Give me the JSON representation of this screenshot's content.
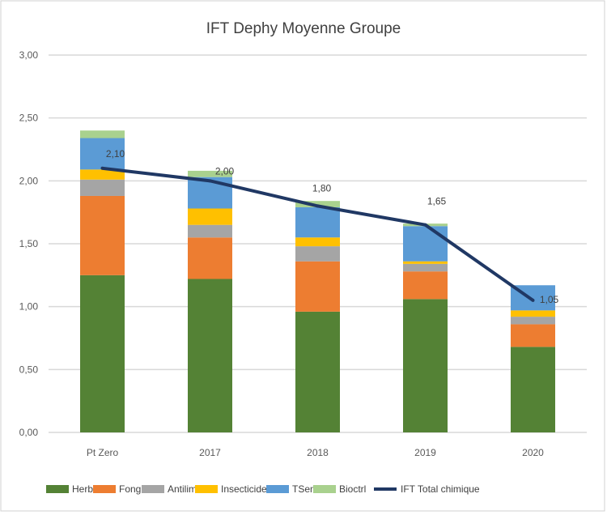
{
  "chart_data": {
    "type": "bar",
    "stacked": true,
    "title": "IFT Dephy Moyenne Groupe",
    "xlabel": "",
    "ylabel": "",
    "ylim": [
      0,
      3
    ],
    "yticks": [
      "0,00",
      "0,50",
      "1,00",
      "1,50",
      "2,00",
      "2,50",
      "3,00"
    ],
    "grid": true,
    "legend_position": "bottom",
    "categories": [
      "Pt Zero",
      "2017",
      "2018",
      "2019",
      "2020"
    ],
    "series": [
      {
        "name": "Herbi",
        "color": "#548235",
        "values": [
          1.25,
          1.22,
          0.96,
          1.06,
          0.68
        ]
      },
      {
        "name": "Fongi",
        "color": "#ED7D31",
        "values": [
          0.63,
          0.33,
          0.4,
          0.22,
          0.18
        ]
      },
      {
        "name": "Antilim",
        "color": "#A5A5A5",
        "values": [
          0.13,
          0.1,
          0.12,
          0.06,
          0.06
        ]
      },
      {
        "name": "Insecticide",
        "color": "#FFC000",
        "values": [
          0.08,
          0.13,
          0.07,
          0.02,
          0.05
        ]
      },
      {
        "name": "TSem",
        "color": "#5B9BD5",
        "values": [
          0.25,
          0.25,
          0.24,
          0.28,
          0.2
        ]
      },
      {
        "name": "Bioctrl",
        "color": "#A9D18E",
        "values": [
          0.06,
          0.05,
          0.05,
          0.02,
          0.0
        ]
      }
    ],
    "line_series": {
      "name": "IFT Total chimique",
      "color": "#203864",
      "values": [
        2.1,
        2.0,
        1.8,
        1.65,
        1.05
      ],
      "labels": [
        "2,10",
        "2,00",
        "1,80",
        "1,65",
        "1,05"
      ]
    }
  }
}
